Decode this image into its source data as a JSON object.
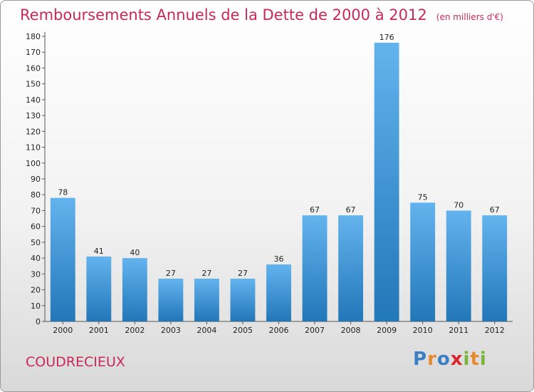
{
  "chart_data": {
    "type": "bar",
    "title": "Remboursements Annuels de la Dette de 2000 à 2012",
    "subtitle": "(en milliers d'€)",
    "xlabel": "",
    "ylabel": "",
    "categories": [
      "2000",
      "2001",
      "2002",
      "2003",
      "2004",
      "2005",
      "2006",
      "2007",
      "2008",
      "2009",
      "2010",
      "2011",
      "2012"
    ],
    "values": [
      78,
      41,
      40,
      27,
      27,
      27,
      36,
      67,
      67,
      176,
      75,
      70,
      67
    ],
    "ylim": [
      0,
      180
    ],
    "yticks": [
      0,
      10,
      20,
      30,
      40,
      50,
      60,
      70,
      80,
      90,
      100,
      110,
      120,
      130,
      140,
      150,
      160,
      170,
      180
    ],
    "grid": false,
    "legend": "none",
    "colors": {
      "bar_top": "#63b3ee",
      "bar_bottom": "#2277b8",
      "title": "#c8285a"
    }
  },
  "footer": {
    "commune": "COUDRECIEUX",
    "logo": {
      "text": "Proxiti",
      "letters": [
        {
          "ch": "P",
          "color": "#3b7fc4"
        },
        {
          "ch": "r",
          "color": "#e8892b"
        },
        {
          "ch": "o",
          "color": "#3b7fc4"
        },
        {
          "ch": "x",
          "color": "#d8282e"
        },
        {
          "ch": "i",
          "color": "#7ab43a"
        },
        {
          "ch": "t",
          "color": "#e8892b"
        },
        {
          "ch": "i",
          "color": "#7ab43a"
        }
      ]
    }
  }
}
